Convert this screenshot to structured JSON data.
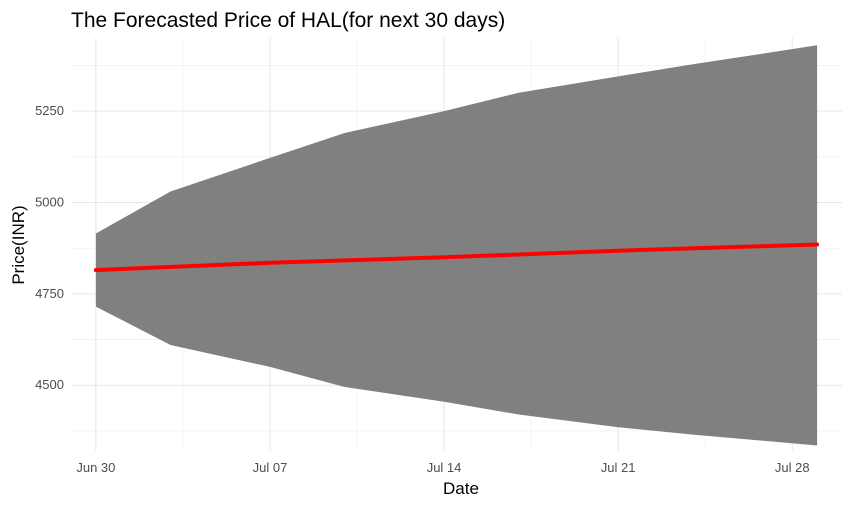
{
  "chart_data": {
    "type": "area",
    "title": "The Forecasted Price of HAL(for next 30 days)",
    "xlabel": "Date",
    "ylabel": "Price(INR)",
    "x_start": "2024-06-30",
    "x_end": "2024-07-29",
    "x_ticks": [
      {
        "label": "Jun 30",
        "date": "2024-06-30"
      },
      {
        "label": "Jul 07",
        "date": "2024-07-07"
      },
      {
        "label": "Jul 14",
        "date": "2024-07-14"
      },
      {
        "label": "Jul 21",
        "date": "2024-07-21"
      },
      {
        "label": "Jul 28",
        "date": "2024-07-28"
      }
    ],
    "y_ticks": [
      4500,
      4750,
      5000,
      5250
    ],
    "ylim": [
      4320,
      5450
    ],
    "xlim": [
      "2024-06-29",
      "2024-07-30"
    ],
    "grid": true,
    "legend": "none",
    "colors": {
      "band": "#808080",
      "forecast": "#ff0000"
    },
    "series": [
      {
        "type": "band",
        "x": [
          "2024-06-30",
          "2024-07-03",
          "2024-07-07",
          "2024-07-10",
          "2024-07-14",
          "2024-07-17",
          "2024-07-21",
          "2024-07-24",
          "2024-07-29"
        ],
        "upper": [
          4915,
          5030,
          5122,
          5190,
          5250,
          5300,
          5345,
          5378,
          5430
        ],
        "lower": [
          4715,
          4610,
          4550,
          4495,
          4455,
          4420,
          4385,
          4365,
          4335
        ]
      },
      {
        "type": "line",
        "x": [
          "2024-06-30",
          "2024-07-07",
          "2024-07-14",
          "2024-07-21",
          "2024-07-29"
        ],
        "values": [
          4815,
          4835,
          4850,
          4868,
          4885
        ]
      }
    ]
  }
}
